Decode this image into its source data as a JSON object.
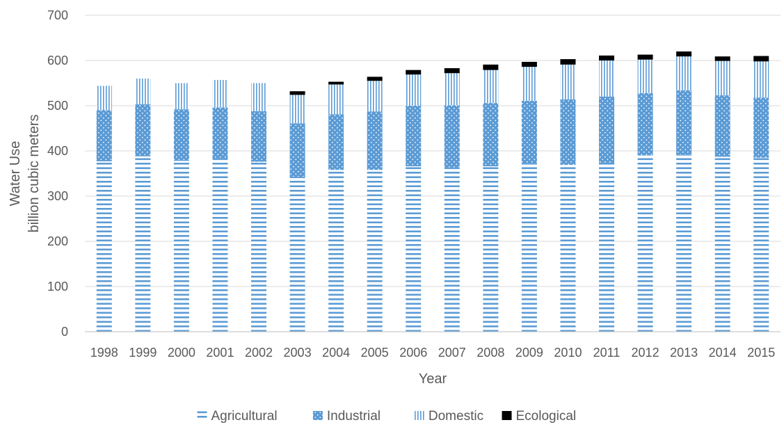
{
  "chart_data": {
    "type": "bar",
    "stacked": true,
    "title": "",
    "xlabel": "Year",
    "ylabel": [
      "Water Use",
      "billion cubic meters"
    ],
    "ylim": [
      0,
      700
    ],
    "yticks": [
      0,
      100,
      200,
      300,
      400,
      500,
      600,
      700
    ],
    "grid": true,
    "legend_position": "bottom",
    "categories": [
      "1998",
      "1999",
      "2000",
      "2001",
      "2002",
      "2003",
      "2004",
      "2005",
      "2006",
      "2007",
      "2008",
      "2009",
      "2010",
      "2011",
      "2012",
      "2013",
      "2014",
      "2015"
    ],
    "series": [
      {
        "name": "Agricultural",
        "color": "#5b9bd5",
        "pattern": "horizontal-lines",
        "values": [
          377,
          388,
          378,
          382,
          376,
          343,
          358,
          358,
          366,
          362,
          366,
          372,
          369,
          374,
          390,
          392,
          387,
          385
        ]
      },
      {
        "name": "Industrial",
        "color": "#5b9bd5",
        "pattern": "dots",
        "values": [
          113,
          115,
          114,
          114,
          112,
          118,
          123,
          129,
          134,
          139,
          140,
          139,
          145,
          146,
          138,
          142,
          136,
          133
        ]
      },
      {
        "name": "Domestic",
        "color": "#5b9bd5",
        "pattern": "vertical-lines",
        "values": [
          54,
          57,
          58,
          61,
          62,
          63,
          66,
          68,
          69,
          71,
          73,
          75,
          77,
          80,
          74,
          75,
          76,
          80
        ]
      },
      {
        "name": "Ecological",
        "color": "#000000",
        "pattern": "solid",
        "values": [
          0,
          0,
          0,
          0,
          0,
          8,
          6,
          9,
          10,
          11,
          12,
          11,
          12,
          11,
          11,
          11,
          10,
          12
        ]
      }
    ]
  }
}
